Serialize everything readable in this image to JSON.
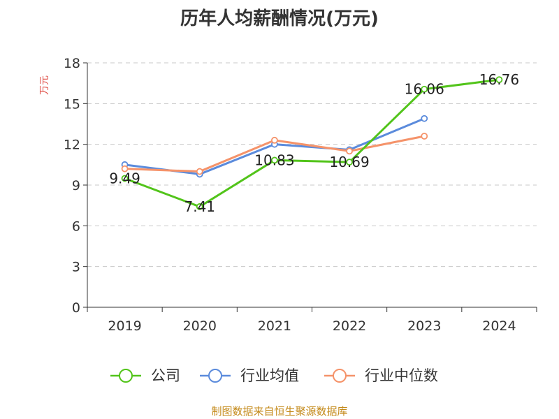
{
  "title": "历年人均薪酬情况(万元)",
  "source_note": "制图数据来自恒生聚源数据库",
  "chart_data": {
    "type": "line",
    "title": "历年人均薪酬情况(万元)",
    "ylabel": "万元",
    "xlabel": "",
    "categories": [
      "2019",
      "2020",
      "2021",
      "2022",
      "2023",
      "2024"
    ],
    "ylim": [
      0,
      18
    ],
    "yticks": [
      0,
      3,
      6,
      9,
      12,
      15,
      18
    ],
    "grid": true,
    "legend_position": "bottom",
    "series": [
      {
        "name": "公司",
        "color": "#52c41a",
        "values": [
          9.49,
          7.41,
          10.83,
          10.69,
          16.06,
          16.76
        ],
        "labels": [
          "9.49",
          "7.41",
          "10.83",
          "10.69",
          "16.06",
          "16.76"
        ]
      },
      {
        "name": "行业均值",
        "color": "#5b8bdc",
        "values": [
          10.5,
          9.8,
          12.0,
          11.6,
          13.9,
          null
        ]
      },
      {
        "name": "行业中位数",
        "color": "#f5936a",
        "values": [
          10.2,
          10.0,
          12.3,
          11.5,
          12.6,
          null
        ]
      }
    ]
  }
}
